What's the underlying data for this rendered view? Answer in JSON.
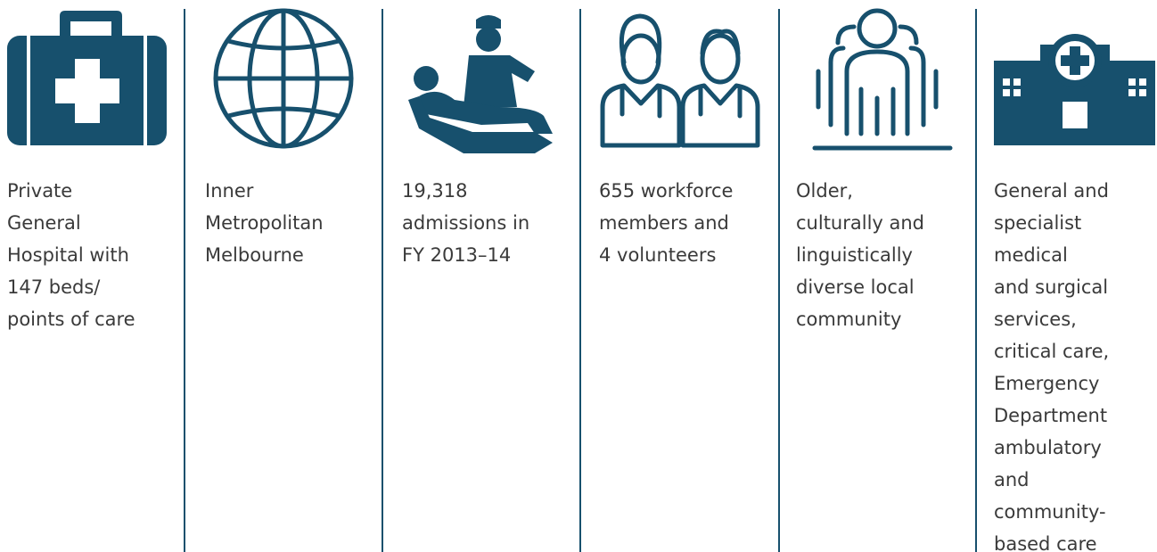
{
  "items": [
    {
      "lines": [
        "Private",
        "General",
        "Hospital with",
        "147 beds/",
        "points of care"
      ]
    },
    {
      "lines": [
        "Inner",
        "Metropolitan",
        "Melbourne"
      ]
    },
    {
      "lines": [
        "19,318",
        "admissions in",
        "FY 2013–14"
      ]
    },
    {
      "lines": [
        "655 workforce",
        "members and",
        "4 volunteers"
      ]
    },
    {
      "lines": [
        "Older,",
        "culturally and",
        "linguistically",
        "diverse local",
        "community"
      ]
    },
    {
      "lines": [
        "General and",
        "specialist",
        "medical",
        "and surgical",
        "services,",
        "critical care,",
        "Emergency",
        "Department",
        "ambulatory",
        "and",
        "community-",
        "based care"
      ]
    }
  ]
}
